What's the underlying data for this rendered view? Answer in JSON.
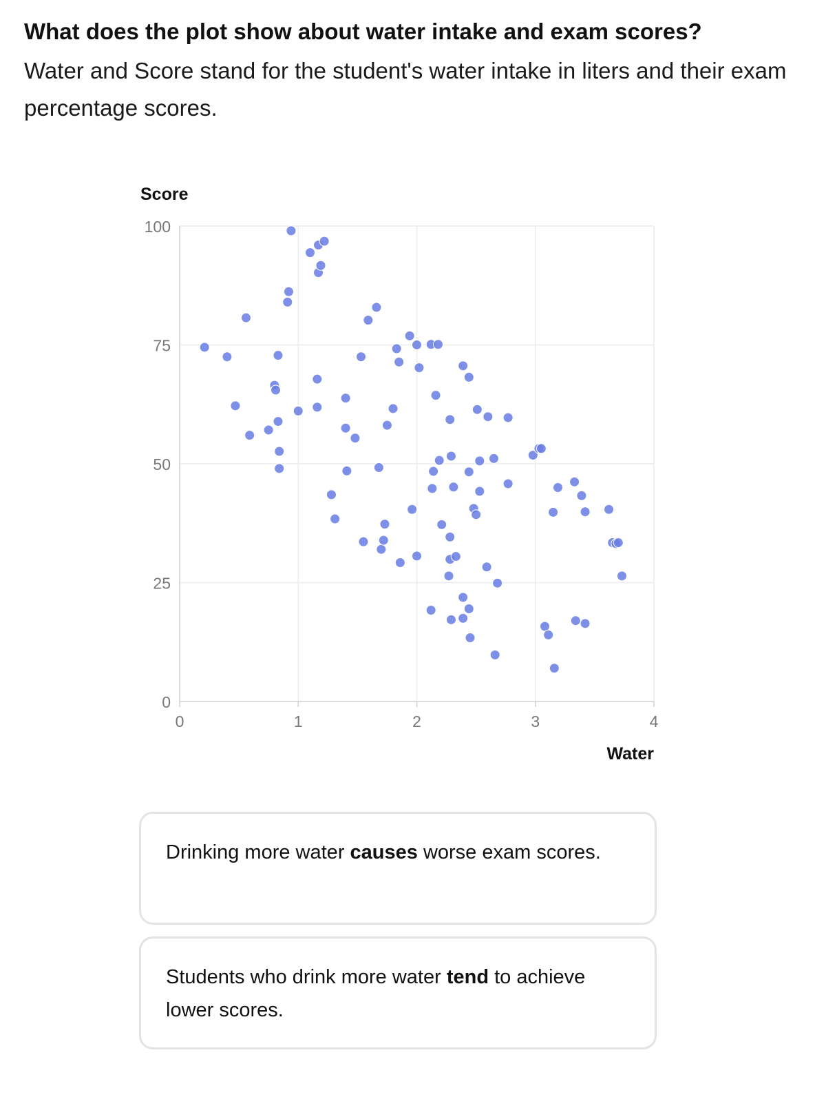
{
  "question": {
    "title": "What does the plot show about water intake and exam scores?",
    "body": "Water and Score stand for the student's water intake in liters and their exam percentage scores."
  },
  "options": [
    {
      "before": "Drinking more water ",
      "bold": "causes",
      "after": " worse exam scores."
    },
    {
      "before": "Students who drink more water ",
      "bold": "tend",
      "after": " to achieve lower scores."
    }
  ],
  "colors": {
    "point": "#6b7fe3",
    "grid": "#ececec",
    "axis": "#cfcfcf",
    "tick_text": "#777777"
  },
  "chart_data": {
    "type": "scatter",
    "xlabel": "Water",
    "ylabel": "Score",
    "xlim": [
      0,
      4
    ],
    "ylim": [
      0,
      100
    ],
    "xticks": [
      0,
      1,
      2,
      3,
      4
    ],
    "yticks": [
      0,
      25,
      50,
      75,
      100
    ],
    "grid": true,
    "points": [
      [
        0.21,
        74.5
      ],
      [
        0.4,
        72.5
      ],
      [
        0.47,
        62.2
      ],
      [
        0.56,
        80.7
      ],
      [
        0.59,
        56.0
      ],
      [
        0.75,
        57.1
      ],
      [
        0.8,
        66.5
      ],
      [
        0.81,
        65.5
      ],
      [
        0.83,
        72.8
      ],
      [
        0.83,
        58.9
      ],
      [
        0.84,
        52.6
      ],
      [
        0.84,
        49.0
      ],
      [
        0.91,
        84.0
      ],
      [
        0.92,
        86.2
      ],
      [
        0.94,
        99.0
      ],
      [
        1.0,
        61.1
      ],
      [
        1.1,
        94.4
      ],
      [
        1.16,
        67.8
      ],
      [
        1.16,
        61.9
      ],
      [
        1.17,
        96.0
      ],
      [
        1.17,
        90.2
      ],
      [
        1.19,
        91.7
      ],
      [
        1.22,
        96.8
      ],
      [
        1.28,
        43.5
      ],
      [
        1.31,
        38.4
      ],
      [
        1.4,
        63.8
      ],
      [
        1.4,
        57.5
      ],
      [
        1.41,
        48.5
      ],
      [
        1.48,
        55.4
      ],
      [
        1.53,
        72.5
      ],
      [
        1.55,
        33.6
      ],
      [
        1.59,
        80.2
      ],
      [
        1.66,
        82.9
      ],
      [
        1.68,
        49.2
      ],
      [
        1.7,
        32.0
      ],
      [
        1.72,
        33.9
      ],
      [
        1.73,
        37.3
      ],
      [
        1.75,
        58.1
      ],
      [
        1.8,
        61.6
      ],
      [
        1.83,
        74.2
      ],
      [
        1.85,
        71.4
      ],
      [
        1.86,
        29.2
      ],
      [
        1.94,
        76.9
      ],
      [
        1.96,
        40.4
      ],
      [
        2.0,
        75.0
      ],
      [
        2.0,
        30.6
      ],
      [
        2.02,
        70.2
      ],
      [
        2.12,
        75.1
      ],
      [
        2.12,
        19.2
      ],
      [
        2.13,
        44.8
      ],
      [
        2.14,
        48.4
      ],
      [
        2.16,
        64.4
      ],
      [
        2.18,
        75.1
      ],
      [
        2.19,
        50.7
      ],
      [
        2.21,
        37.2
      ],
      [
        2.27,
        26.4
      ],
      [
        2.28,
        59.3
      ],
      [
        2.28,
        34.6
      ],
      [
        2.28,
        29.9
      ],
      [
        2.29,
        17.2
      ],
      [
        2.29,
        51.6
      ],
      [
        2.31,
        45.1
      ],
      [
        2.33,
        30.5
      ],
      [
        2.39,
        70.6
      ],
      [
        2.39,
        21.9
      ],
      [
        2.39,
        17.5
      ],
      [
        2.44,
        68.2
      ],
      [
        2.44,
        48.3
      ],
      [
        2.44,
        19.5
      ],
      [
        2.45,
        13.4
      ],
      [
        2.48,
        40.6
      ],
      [
        2.5,
        39.3
      ],
      [
        2.51,
        61.4
      ],
      [
        2.53,
        44.2
      ],
      [
        2.53,
        50.6
      ],
      [
        2.59,
        28.3
      ],
      [
        2.6,
        59.9
      ],
      [
        2.65,
        51.1
      ],
      [
        2.66,
        9.8
      ],
      [
        2.68,
        24.9
      ],
      [
        2.77,
        59.7
      ],
      [
        2.77,
        45.8
      ],
      [
        2.98,
        51.8
      ],
      [
        3.03,
        53.2
      ],
      [
        3.05,
        53.2
      ],
      [
        3.08,
        15.8
      ],
      [
        3.11,
        14.0
      ],
      [
        3.15,
        39.8
      ],
      [
        3.16,
        7.0
      ],
      [
        3.19,
        45.0
      ],
      [
        3.33,
        46.2
      ],
      [
        3.34,
        17.0
      ],
      [
        3.39,
        43.3
      ],
      [
        3.42,
        39.9
      ],
      [
        3.42,
        16.4
      ],
      [
        3.62,
        40.4
      ],
      [
        3.65,
        33.4
      ],
      [
        3.68,
        33.2
      ],
      [
        3.7,
        33.4
      ],
      [
        3.73,
        26.4
      ]
    ]
  }
}
